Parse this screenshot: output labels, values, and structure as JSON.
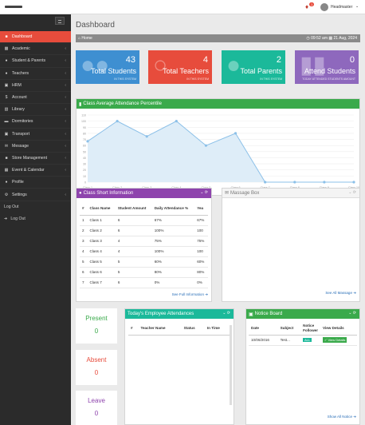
{
  "topbar": {
    "notifications_count": "1",
    "username": "Headmaster"
  },
  "sidebar": {
    "items": [
      {
        "label": "Dashboard",
        "icon": "dashboard-icon",
        "caret": ""
      },
      {
        "label": "Academic",
        "icon": "book-icon",
        "caret": "‹"
      },
      {
        "label": "Student & Parents",
        "icon": "users-icon",
        "caret": "‹"
      },
      {
        "label": "Teachers",
        "icon": "user-icon",
        "caret": "‹"
      },
      {
        "label": "HRM",
        "icon": "briefcase-icon",
        "caret": "‹"
      },
      {
        "label": "Account",
        "icon": "money-icon",
        "caret": "‹"
      },
      {
        "label": "Library",
        "icon": "library-icon",
        "caret": "‹"
      },
      {
        "label": "Dormitories",
        "icon": "bed-icon",
        "caret": "‹"
      },
      {
        "label": "Transport",
        "icon": "bus-icon",
        "caret": "‹"
      },
      {
        "label": "Message",
        "icon": "envelope-icon",
        "caret": "‹"
      },
      {
        "label": "Store Management",
        "icon": "store-icon",
        "caret": "‹"
      },
      {
        "label": "Event & Calendar",
        "icon": "calendar-icon",
        "caret": "‹"
      },
      {
        "label": "Profile",
        "icon": "profile-icon",
        "caret": ""
      },
      {
        "label": "Settings",
        "icon": "gear-icon",
        "caret": "‹"
      }
    ],
    "logout_plain": "Log Out",
    "logout": "Log Out"
  },
  "main": {
    "page_title": "Dashboard",
    "breadcrumb_home": "Home",
    "time": "09:52 am",
    "date": "21 Aug, 2024"
  },
  "stats": [
    {
      "value": "43",
      "label": "Total Students",
      "sub": "IN THIS SYSTEM",
      "color": "#3e8fd1"
    },
    {
      "value": "4",
      "label": "Total Teachers",
      "sub": "IN THIS SYSTEM",
      "color": "#e74c3c"
    },
    {
      "value": "2",
      "label": "Total Parents",
      "sub": "IN THIS SYSTEM",
      "color": "#1bb99a"
    },
    {
      "value": "0",
      "label": "Attend Students",
      "sub": "TODAY ATTENDED STUDENTS AMOUNT",
      "color": "#8e68bd"
    }
  ],
  "attendance_chart": {
    "title": "Class Average Attendance Percentile",
    "chart_data": {
      "type": "area",
      "categories": [
        "Class 1",
        "Class 2",
        "Class 3",
        "Class 4",
        "Class 5",
        "Class 6",
        "Class 7",
        "Class 8",
        "Class 9",
        "Class 10"
      ],
      "values": [
        67,
        100,
        75,
        100,
        60,
        80,
        0,
        0,
        0,
        0
      ],
      "ylim": [
        0,
        110
      ],
      "yticks": [
        0,
        10,
        20,
        30,
        40,
        50,
        60,
        70,
        80,
        90,
        100,
        110
      ],
      "title": "",
      "xlabel": "",
      "ylabel": "",
      "color": "#8cc0e8",
      "grid": true
    }
  },
  "class_info": {
    "title": "Class Short Information",
    "headers": [
      "#",
      "Class Name",
      "Student Amount",
      "Daily Attendance %",
      "Yea"
    ],
    "rows": [
      [
        "1",
        "Class 1",
        "6",
        "67%",
        "67%"
      ],
      [
        "2",
        "Class 2",
        "6",
        "100%",
        "100"
      ],
      [
        "3",
        "Class 3",
        "4",
        "75%",
        "75%"
      ],
      [
        "4",
        "Class 4",
        "4",
        "100%",
        "100"
      ],
      [
        "5",
        "Class 5",
        "5",
        "60%",
        "60%"
      ],
      [
        "6",
        "Class 6",
        "5",
        "80%",
        "80%"
      ],
      [
        "7",
        "Class 7",
        "6",
        "0%",
        "0%"
      ]
    ],
    "link": "See Full Information"
  },
  "message_box": {
    "title": "Massage Box",
    "link": "See All Massage"
  },
  "counters": [
    {
      "label": "Present",
      "value": "0",
      "color": "#3aaa4b"
    },
    {
      "label": "Absent",
      "value": "0",
      "color": "#e74c3c"
    },
    {
      "label": "Leave",
      "value": "0",
      "color": "#8e44ad"
    }
  ],
  "employee_att": {
    "title": "Today's Employee Attendances",
    "headers": [
      "#",
      "Teacher Name",
      "Status",
      "In Time"
    ]
  },
  "notice_board": {
    "title": "Notice Board",
    "headers": [
      "Date",
      "Subject",
      "Notice Follower",
      "View Details"
    ],
    "row": {
      "date": "10/06/2016",
      "subject": "Test...",
      "follower": "ALL",
      "details": "View Details"
    },
    "link": "Show All Notice"
  }
}
